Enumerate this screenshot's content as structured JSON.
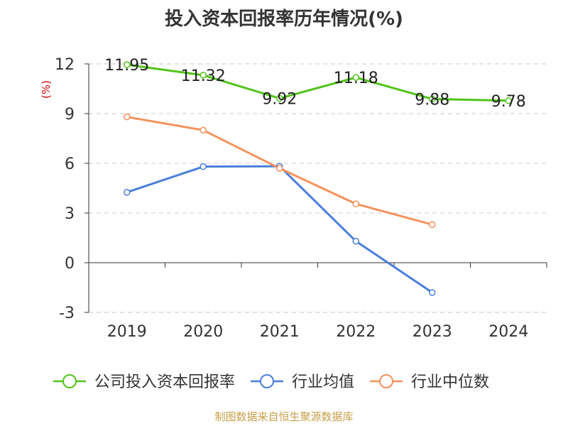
{
  "chart_data": {
    "type": "line",
    "title": "投入资本回报率历年情况(%)",
    "ylabel": "(%)",
    "categories": [
      "2019",
      "2020",
      "2021",
      "2022",
      "2023",
      "2024"
    ],
    "ylim": [
      -3,
      12
    ],
    "yticks": [
      12,
      9,
      6,
      3,
      0,
      -3
    ],
    "grid": true,
    "legend_position": "bottom",
    "series": [
      {
        "name": "公司投入资本回报率",
        "color": "#52c41a",
        "values": [
          11.95,
          11.32,
          9.92,
          11.18,
          9.88,
          9.78
        ],
        "labels": [
          "11.95",
          "11.32",
          "9.92",
          "11.18",
          "9.88",
          "9.78"
        ]
      },
      {
        "name": "行业均值",
        "color": "#4a7fdb",
        "values": [
          4.25,
          5.8,
          5.82,
          1.3,
          -1.8,
          null
        ]
      },
      {
        "name": "行业中位数",
        "color": "#f5915a",
        "values": [
          8.8,
          8.0,
          5.7,
          3.55,
          2.3,
          null
        ]
      }
    ]
  },
  "source": "制图数据来自恒生聚源数据库"
}
